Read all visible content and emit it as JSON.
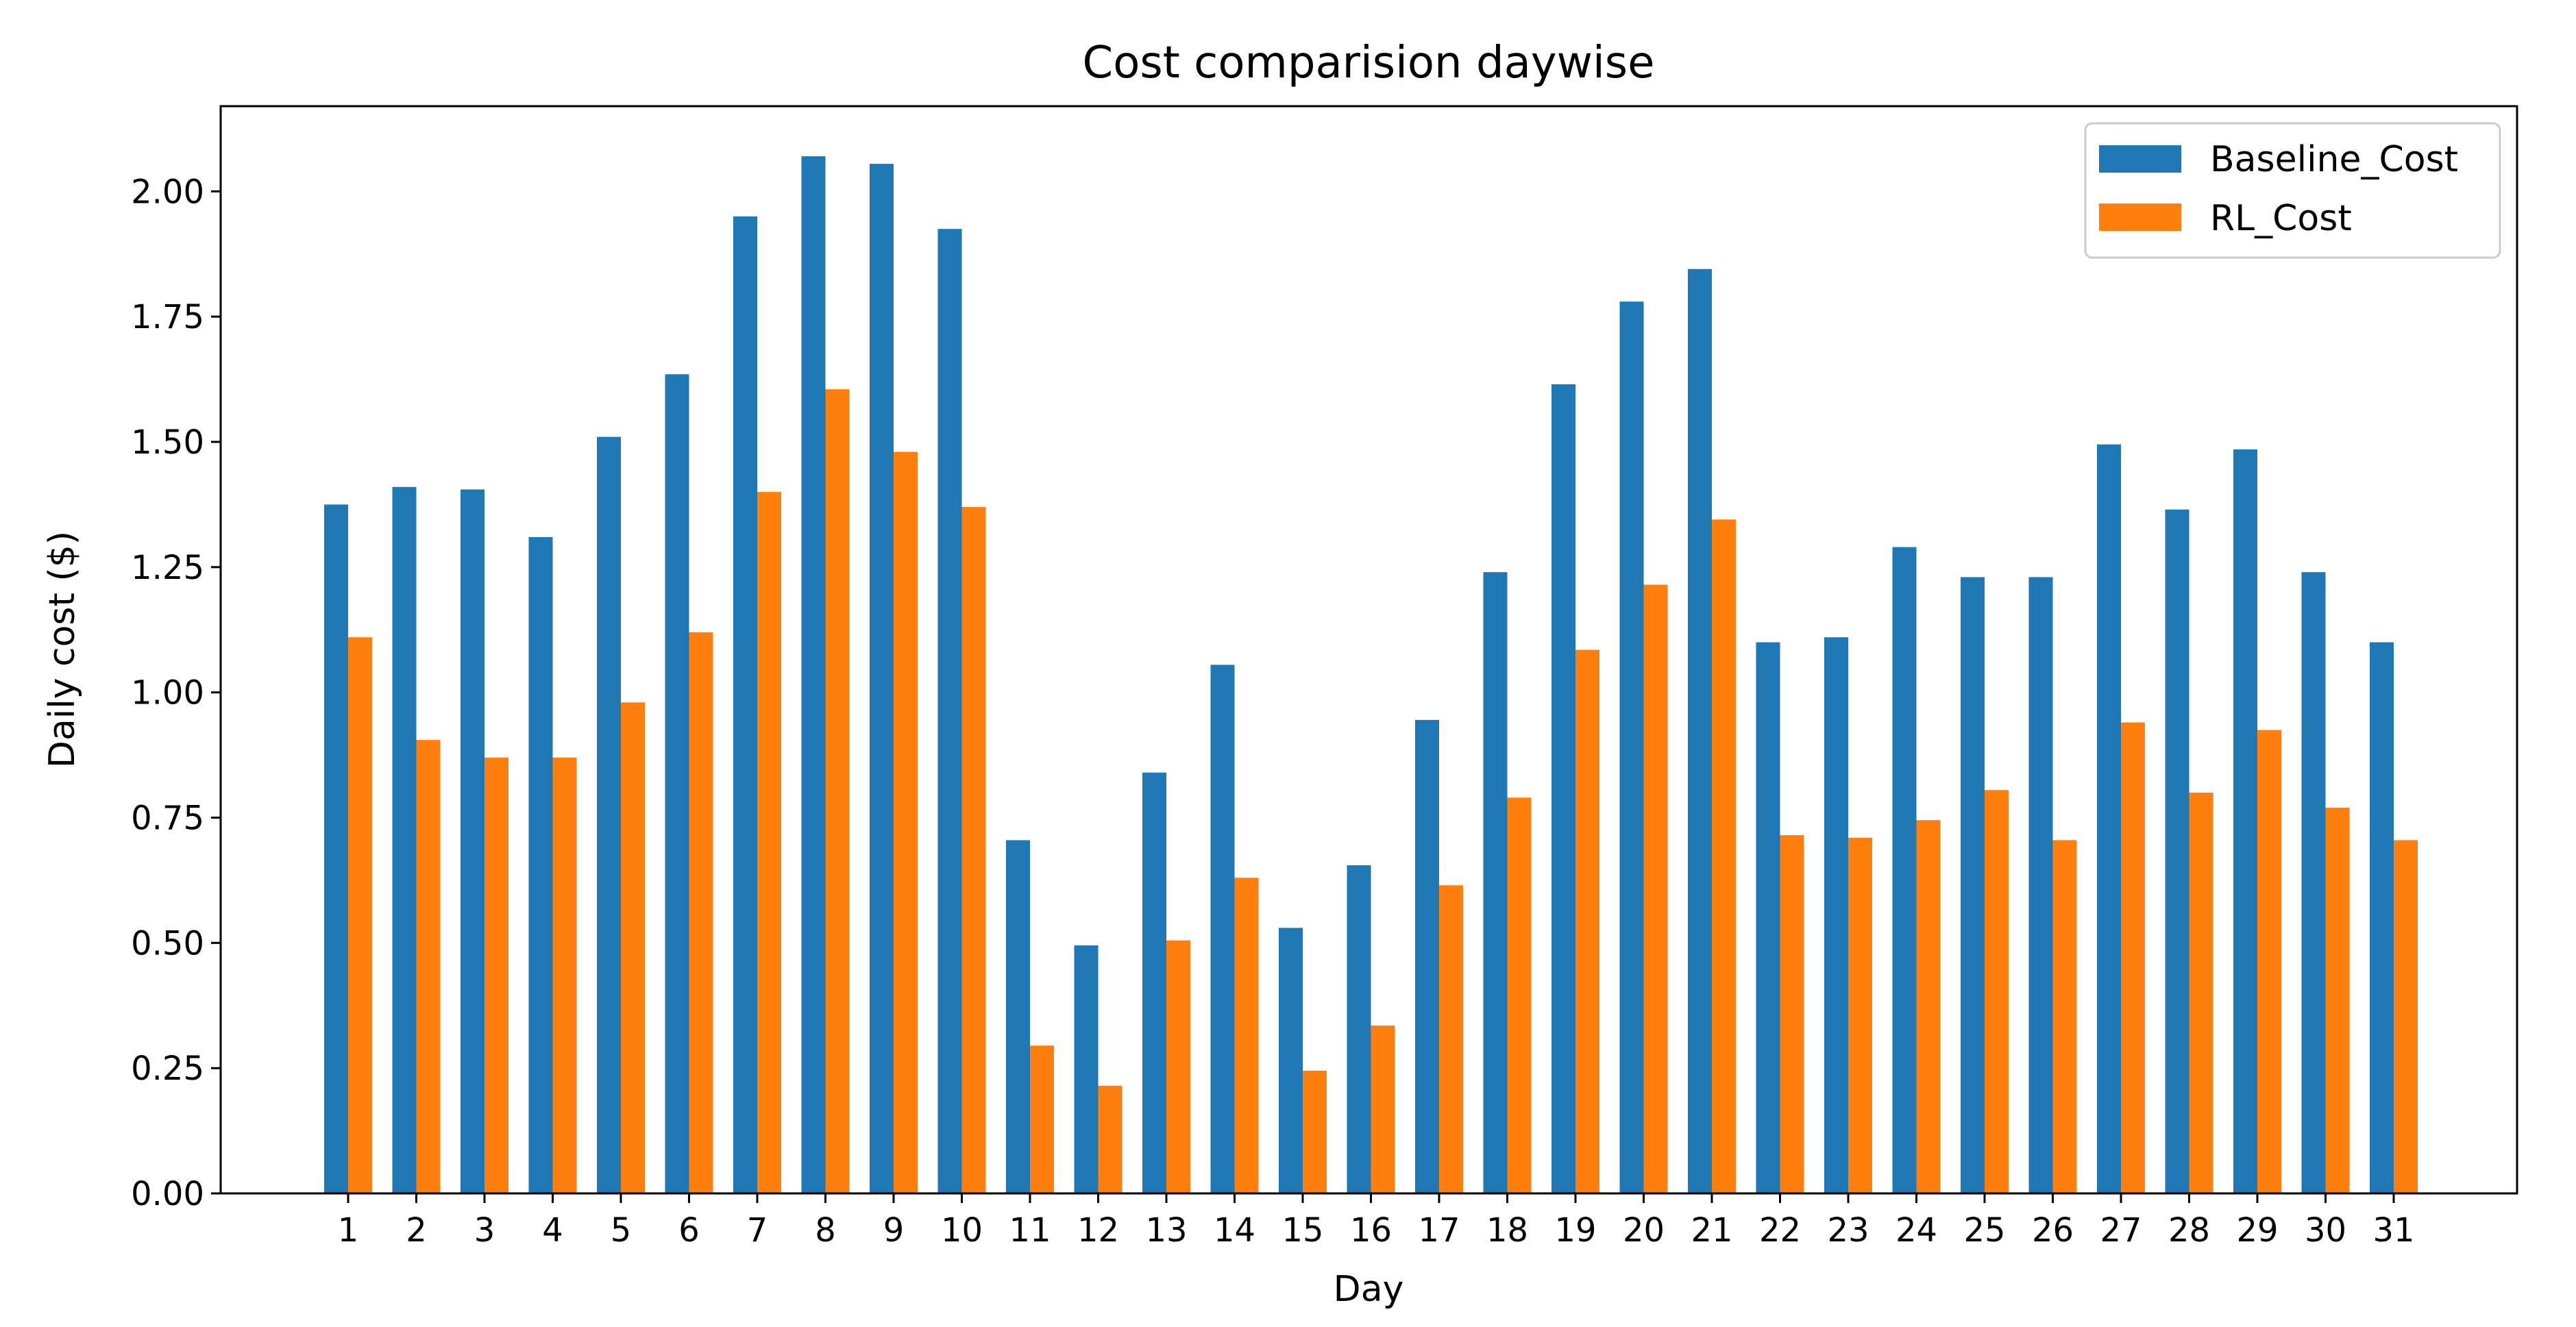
{
  "chart_data": {
    "type": "bar",
    "title": "Cost comparision daywise",
    "xlabel": "Day",
    "ylabel": "Daily cost ($)",
    "ylim": [
      0,
      2.17
    ],
    "yticks": [
      "0.00",
      "0.25",
      "0.50",
      "0.75",
      "1.00",
      "1.25",
      "1.50",
      "1.75",
      "2.00"
    ],
    "categories": [
      "1",
      "2",
      "3",
      "4",
      "5",
      "6",
      "7",
      "8",
      "9",
      "10",
      "11",
      "12",
      "13",
      "14",
      "15",
      "16",
      "17",
      "18",
      "19",
      "20",
      "21",
      "22",
      "23",
      "24",
      "25",
      "26",
      "27",
      "28",
      "29",
      "30",
      "31"
    ],
    "series": [
      {
        "name": "Baseline_Cost",
        "color": "#1f77b4",
        "values": [
          1.375,
          1.41,
          1.405,
          1.31,
          1.51,
          1.635,
          1.95,
          2.07,
          2.055,
          1.925,
          0.705,
          0.495,
          0.84,
          1.055,
          0.53,
          0.655,
          0.945,
          1.24,
          1.615,
          1.78,
          1.845,
          1.1,
          1.11,
          1.29,
          1.23,
          1.23,
          1.495,
          1.365,
          1.485,
          1.24,
          1.1
        ]
      },
      {
        "name": "RL_Cost",
        "color": "#ff7f0e",
        "values": [
          1.11,
          0.905,
          0.87,
          0.87,
          0.98,
          1.12,
          1.4,
          1.605,
          1.48,
          1.37,
          0.295,
          0.215,
          0.505,
          0.63,
          0.245,
          0.335,
          0.615,
          0.79,
          1.085,
          1.215,
          1.345,
          0.715,
          0.71,
          0.745,
          0.805,
          0.705,
          0.94,
          0.8,
          0.925,
          0.77,
          0.705
        ]
      }
    ],
    "legend_position": "top-right",
    "grid": false
  }
}
